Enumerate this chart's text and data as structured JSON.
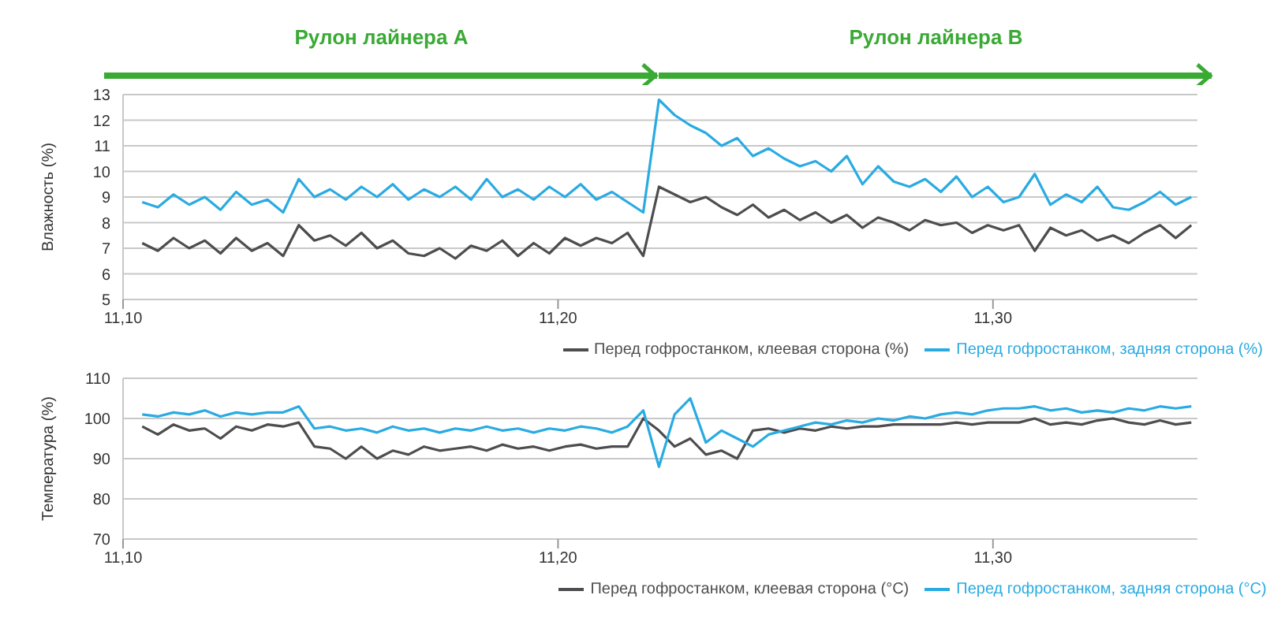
{
  "chart_data": [
    {
      "type": "line",
      "ylabel": "Влажность (%)",
      "annotations": [
        "Рулон лайнера A",
        "Рулон лайнера B"
      ],
      "x": [
        11.1044,
        11.108,
        11.1116,
        11.1152,
        11.1188,
        11.1224,
        11.126,
        11.1296,
        11.1332,
        11.1368,
        11.1404,
        11.144,
        11.1476,
        11.1512,
        11.1548,
        11.1584,
        11.162,
        11.1656,
        11.1692,
        11.1728,
        11.1764,
        11.18,
        11.1836,
        11.1872,
        11.1908,
        11.1944,
        11.198,
        11.2016,
        11.2052,
        11.2088,
        11.2124,
        11.216,
        11.2196,
        11.2232,
        11.2268,
        11.2304,
        11.234,
        11.2376,
        11.2412,
        11.2448,
        11.2484,
        11.252,
        11.2556,
        11.2592,
        11.2628,
        11.2664,
        11.27,
        11.2736,
        11.2772,
        11.2808,
        11.2844,
        11.288,
        11.2916,
        11.2952,
        11.2988,
        11.3024,
        11.306,
        11.3096,
        11.3132,
        11.3168,
        11.3204,
        11.324,
        11.3276,
        11.3312,
        11.3348,
        11.3384,
        11.342,
        11.3456
      ],
      "series": [
        {
          "name": "Перед гофростанком, клеевая сторона (%)",
          "color": "#4d4d4f",
          "values": [
            7.2,
            6.9,
            7.4,
            7.0,
            7.3,
            6.8,
            7.4,
            6.9,
            7.2,
            6.7,
            7.9,
            7.3,
            7.5,
            7.1,
            7.6,
            7.0,
            7.3,
            6.8,
            6.7,
            7.0,
            6.6,
            7.1,
            6.9,
            7.3,
            6.7,
            7.2,
            6.8,
            7.4,
            7.1,
            7.4,
            7.2,
            7.6,
            6.7,
            9.4,
            9.1,
            8.8,
            9.0,
            8.6,
            8.3,
            8.7,
            8.2,
            8.5,
            8.1,
            8.4,
            8.0,
            8.3,
            7.8,
            8.2,
            8.0,
            7.7,
            8.1,
            7.9,
            8.0,
            7.6,
            7.9,
            7.7,
            7.9,
            6.9,
            7.8,
            7.5,
            7.7,
            7.3,
            7.5,
            7.2,
            7.6,
            7.9,
            7.4,
            7.9
          ]
        },
        {
          "name": "Перед гофростанком, задняя сторона (%)",
          "color": "#29abe2",
          "values": [
            8.8,
            8.6,
            9.1,
            8.7,
            9.0,
            8.5,
            9.2,
            8.7,
            8.9,
            8.4,
            9.7,
            9.0,
            9.3,
            8.9,
            9.4,
            9.0,
            9.5,
            8.9,
            9.3,
            9.0,
            9.4,
            8.9,
            9.7,
            9.0,
            9.3,
            8.9,
            9.4,
            9.0,
            9.5,
            8.9,
            9.2,
            8.8,
            8.4,
            12.8,
            12.2,
            11.8,
            11.5,
            11.0,
            11.3,
            10.6,
            10.9,
            10.5,
            10.2,
            10.4,
            10.0,
            10.6,
            9.5,
            10.2,
            9.6,
            9.4,
            9.7,
            9.2,
            9.8,
            9.0,
            9.4,
            8.8,
            9.0,
            9.9,
            8.7,
            9.1,
            8.8,
            9.4,
            8.6,
            8.5,
            8.8,
            9.2,
            8.7,
            9.0
          ]
        }
      ],
      "xlim": [
        11.1,
        11.347
      ],
      "xticks": [
        {
          "value": 11.1,
          "label": "11,10"
        },
        {
          "value": 11.2,
          "label": "11,20"
        },
        {
          "value": 11.3,
          "label": "11,30"
        }
      ],
      "ylim": [
        5,
        13
      ],
      "yticks": [
        5,
        6,
        7,
        8,
        9,
        10,
        11,
        12,
        13
      ],
      "grid": "y",
      "legend": "bottom"
    },
    {
      "type": "line",
      "ylabel": "Температура (%)",
      "x": [
        11.1044,
        11.108,
        11.1116,
        11.1152,
        11.1188,
        11.1224,
        11.126,
        11.1296,
        11.1332,
        11.1368,
        11.1404,
        11.144,
        11.1476,
        11.1512,
        11.1548,
        11.1584,
        11.162,
        11.1656,
        11.1692,
        11.1728,
        11.1764,
        11.18,
        11.1836,
        11.1872,
        11.1908,
        11.1944,
        11.198,
        11.2016,
        11.2052,
        11.2088,
        11.2124,
        11.216,
        11.2196,
        11.2232,
        11.2268,
        11.2304,
        11.234,
        11.2376,
        11.2412,
        11.2448,
        11.2484,
        11.252,
        11.2556,
        11.2592,
        11.2628,
        11.2664,
        11.27,
        11.2736,
        11.2772,
        11.2808,
        11.2844,
        11.288,
        11.2916,
        11.2952,
        11.2988,
        11.3024,
        11.306,
        11.3096,
        11.3132,
        11.3168,
        11.3204,
        11.324,
        11.3276,
        11.3312,
        11.3348,
        11.3384,
        11.342,
        11.3456
      ],
      "series": [
        {
          "name": "Перед гофростанком, клеевая сторона (°C)",
          "color": "#4d4d4f",
          "values": [
            98,
            96,
            98.5,
            97,
            97.5,
            95,
            98,
            97,
            98.5,
            98,
            99,
            93,
            92.5,
            90,
            93,
            90,
            92,
            91,
            93,
            92,
            92.5,
            93,
            92,
            93.5,
            92.5,
            93,
            92,
            93,
            93.5,
            92.5,
            93,
            93,
            100,
            97,
            93,
            95,
            91,
            92,
            90,
            97,
            97.5,
            96.5,
            97.5,
            97,
            98,
            97.5,
            98,
            98,
            98.5,
            98.5,
            98.5,
            98.5,
            99,
            98.5,
            99,
            99,
            99,
            100,
            98.5,
            99,
            98.5,
            99.5,
            100,
            99,
            98.5,
            99.5,
            98.5,
            99
          ]
        },
        {
          "name": "Перед гофростанком, задняя сторона (°C)",
          "color": "#29abe2",
          "values": [
            101,
            100.5,
            101.5,
            101,
            102,
            100.5,
            101.5,
            101,
            101.5,
            101.5,
            103,
            97.5,
            98,
            97,
            97.5,
            96.5,
            98,
            97,
            97.5,
            96.5,
            97.5,
            97,
            98,
            97,
            97.5,
            96.5,
            97.5,
            97,
            98,
            97.5,
            96.5,
            98,
            102,
            88,
            101,
            105,
            94,
            97,
            95,
            93,
            96,
            97,
            98,
            99,
            98.5,
            99.5,
            99,
            100,
            99.5,
            100.5,
            100,
            101,
            101.5,
            101,
            102,
            102.5,
            102.5,
            103,
            102,
            102.5,
            101.5,
            102,
            101.5,
            102.5,
            102,
            103,
            102.5,
            103
          ]
        }
      ],
      "xlim": [
        11.1,
        11.347
      ],
      "xticks": [
        {
          "value": 11.1,
          "label": "11,10"
        },
        {
          "value": 11.2,
          "label": "11,20"
        },
        {
          "value": 11.3,
          "label": "11,30"
        }
      ],
      "ylim": [
        70,
        110
      ],
      "yticks": [
        70,
        80,
        90,
        100,
        110
      ],
      "grid": "y",
      "legend": "bottom"
    }
  ]
}
